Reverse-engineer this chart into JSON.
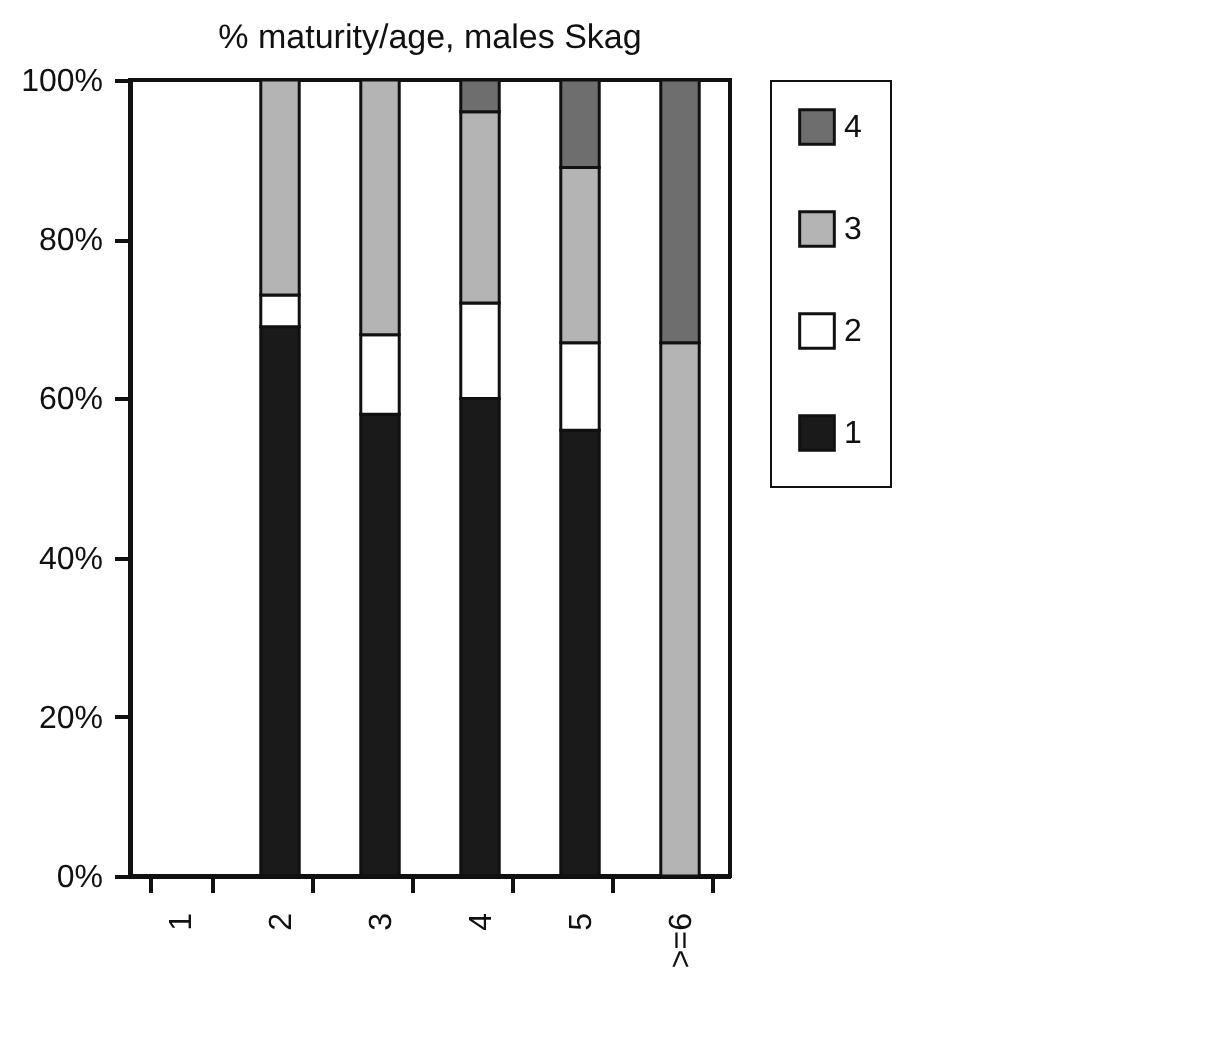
{
  "chart_data": {
    "type": "bar",
    "title": "% maturity/age, males Skag",
    "stacked": true,
    "categories": [
      "1",
      "2",
      "3",
      "4",
      "5",
      ">=6"
    ],
    "series": [
      {
        "name": "1",
        "color": "#1a1a1a",
        "values": [
          null,
          69,
          58,
          60,
          56,
          null
        ]
      },
      {
        "name": "2",
        "color": "#ffffff",
        "values": [
          null,
          4,
          10,
          12,
          11,
          null
        ]
      },
      {
        "name": "3",
        "color": "#b4b4b4",
        "values": [
          null,
          27,
          32,
          24,
          22,
          67
        ]
      },
      {
        "name": "4",
        "color": "#6e6e6e",
        "values": [
          null,
          null,
          null,
          4,
          11,
          33
        ]
      }
    ],
    "ylim": [
      0,
      100
    ],
    "yticks": [
      {
        "value": 0,
        "label": "0%"
      },
      {
        "value": 20,
        "label": "20%"
      },
      {
        "value": 40,
        "label": "40%"
      },
      {
        "value": 60,
        "label": "60%"
      },
      {
        "value": 80,
        "label": "80%"
      },
      {
        "value": 100,
        "label": "100%"
      }
    ],
    "legend": "right",
    "grid": false
  }
}
